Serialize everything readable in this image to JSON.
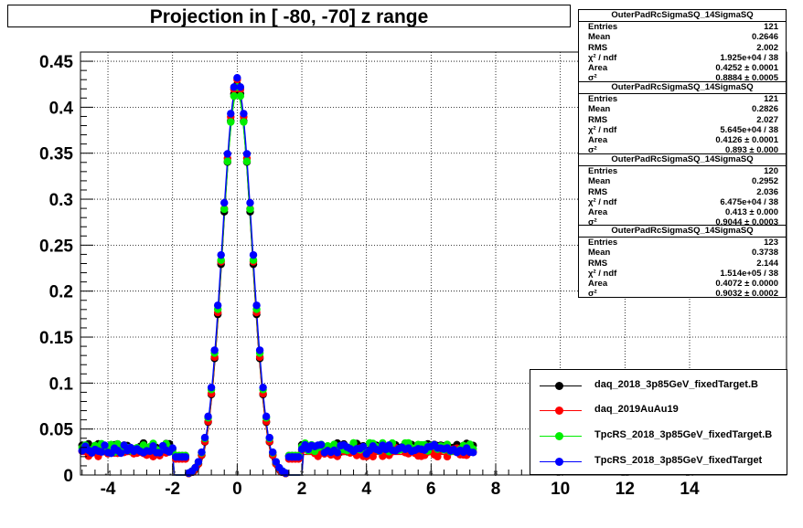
{
  "title": "Projection in [ -80, -70] z range",
  "chart_data": {
    "type": "scatter",
    "xlim": [
      -4.85,
      17.0
    ],
    "ylim": [
      0,
      0.46
    ],
    "x_ticks_major": [
      -4,
      -2,
      0,
      2,
      4,
      6,
      8,
      10,
      12,
      14
    ],
    "x_ticks_inner": [
      -4,
      -2,
      0,
      2,
      4,
      6,
      8,
      10,
      12,
      14
    ],
    "y_ticks": [
      0,
      0.05,
      0.1,
      0.15,
      0.2,
      0.25,
      0.3,
      0.35,
      0.4,
      0.45
    ],
    "y_tick_labels": [
      "0",
      "0.05",
      "0.1",
      "0.15",
      "0.2",
      "0.25",
      "0.3",
      "0.35",
      "0.4",
      "0.45"
    ],
    "grid": true,
    "legend_position": "bottom-right",
    "series": [
      {
        "name": "daq_2018_3p85GeV_fixedTarget.B",
        "color": "#000000",
        "peak": 0.425,
        "sigma": 0.45,
        "tail": 0.03
      },
      {
        "name": "daq_2019AuAu19",
        "color": "#ff0000",
        "peak": 0.43,
        "sigma": 0.45,
        "tail": 0.025
      },
      {
        "name": "TpcRS_2018_3p85GeV_fixedTarget.B",
        "color": "#00ee00",
        "peak": 0.422,
        "sigma": 0.46,
        "tail": 0.03
      },
      {
        "name": "TpcRS_2018_3p85GeV_fixedTarget",
        "color": "#0000ff",
        "peak": 0.432,
        "sigma": 0.46,
        "tail": 0.028
      }
    ],
    "stats": [
      {
        "title": "OuterPadRcSigmaSQ_14SigmaSQ",
        "rows": [
          [
            "Entries",
            "121"
          ],
          [
            "Mean",
            "0.2646"
          ],
          [
            "RMS",
            "2.002"
          ],
          [
            "χ² / ndf",
            "1.925e+04 / 38"
          ],
          [
            "Area",
            "0.4252 ± 0.0001"
          ],
          [
            "σ²",
            "0.8884 ± 0.0005"
          ]
        ]
      },
      {
        "title": "OuterPadRcSigmaSQ_14SigmaSQ",
        "rows": [
          [
            "Entries",
            "121"
          ],
          [
            "Mean",
            "0.2826"
          ],
          [
            "RMS",
            "2.027"
          ],
          [
            "χ² / ndf",
            "5.645e+04 / 38"
          ],
          [
            "Area",
            "0.4126 ± 0.0001"
          ],
          [
            "σ²",
            "0.893 ± 0.000"
          ]
        ]
      },
      {
        "title": "OuterPadRcSigmaSQ_14SigmaSQ",
        "rows": [
          [
            "Entries",
            "120"
          ],
          [
            "Mean",
            "0.2952"
          ],
          [
            "RMS",
            "2.036"
          ],
          [
            "χ² / ndf",
            "6.475e+04 / 38"
          ],
          [
            "Area",
            "0.413 ± 0.000"
          ],
          [
            "σ²",
            "0.9044 ± 0.0003"
          ]
        ]
      },
      {
        "title": "OuterPadRcSigmaSQ_14SigmaSQ",
        "rows": [
          [
            "Entries",
            "123"
          ],
          [
            "Mean",
            "0.3738"
          ],
          [
            "RMS",
            "2.144"
          ],
          [
            "χ² / ndf",
            "1.514e+05 / 38"
          ],
          [
            "Area",
            "0.4072 ± 0.0000"
          ],
          [
            "σ²",
            "0.9032 ± 0.0002"
          ]
        ]
      }
    ]
  }
}
